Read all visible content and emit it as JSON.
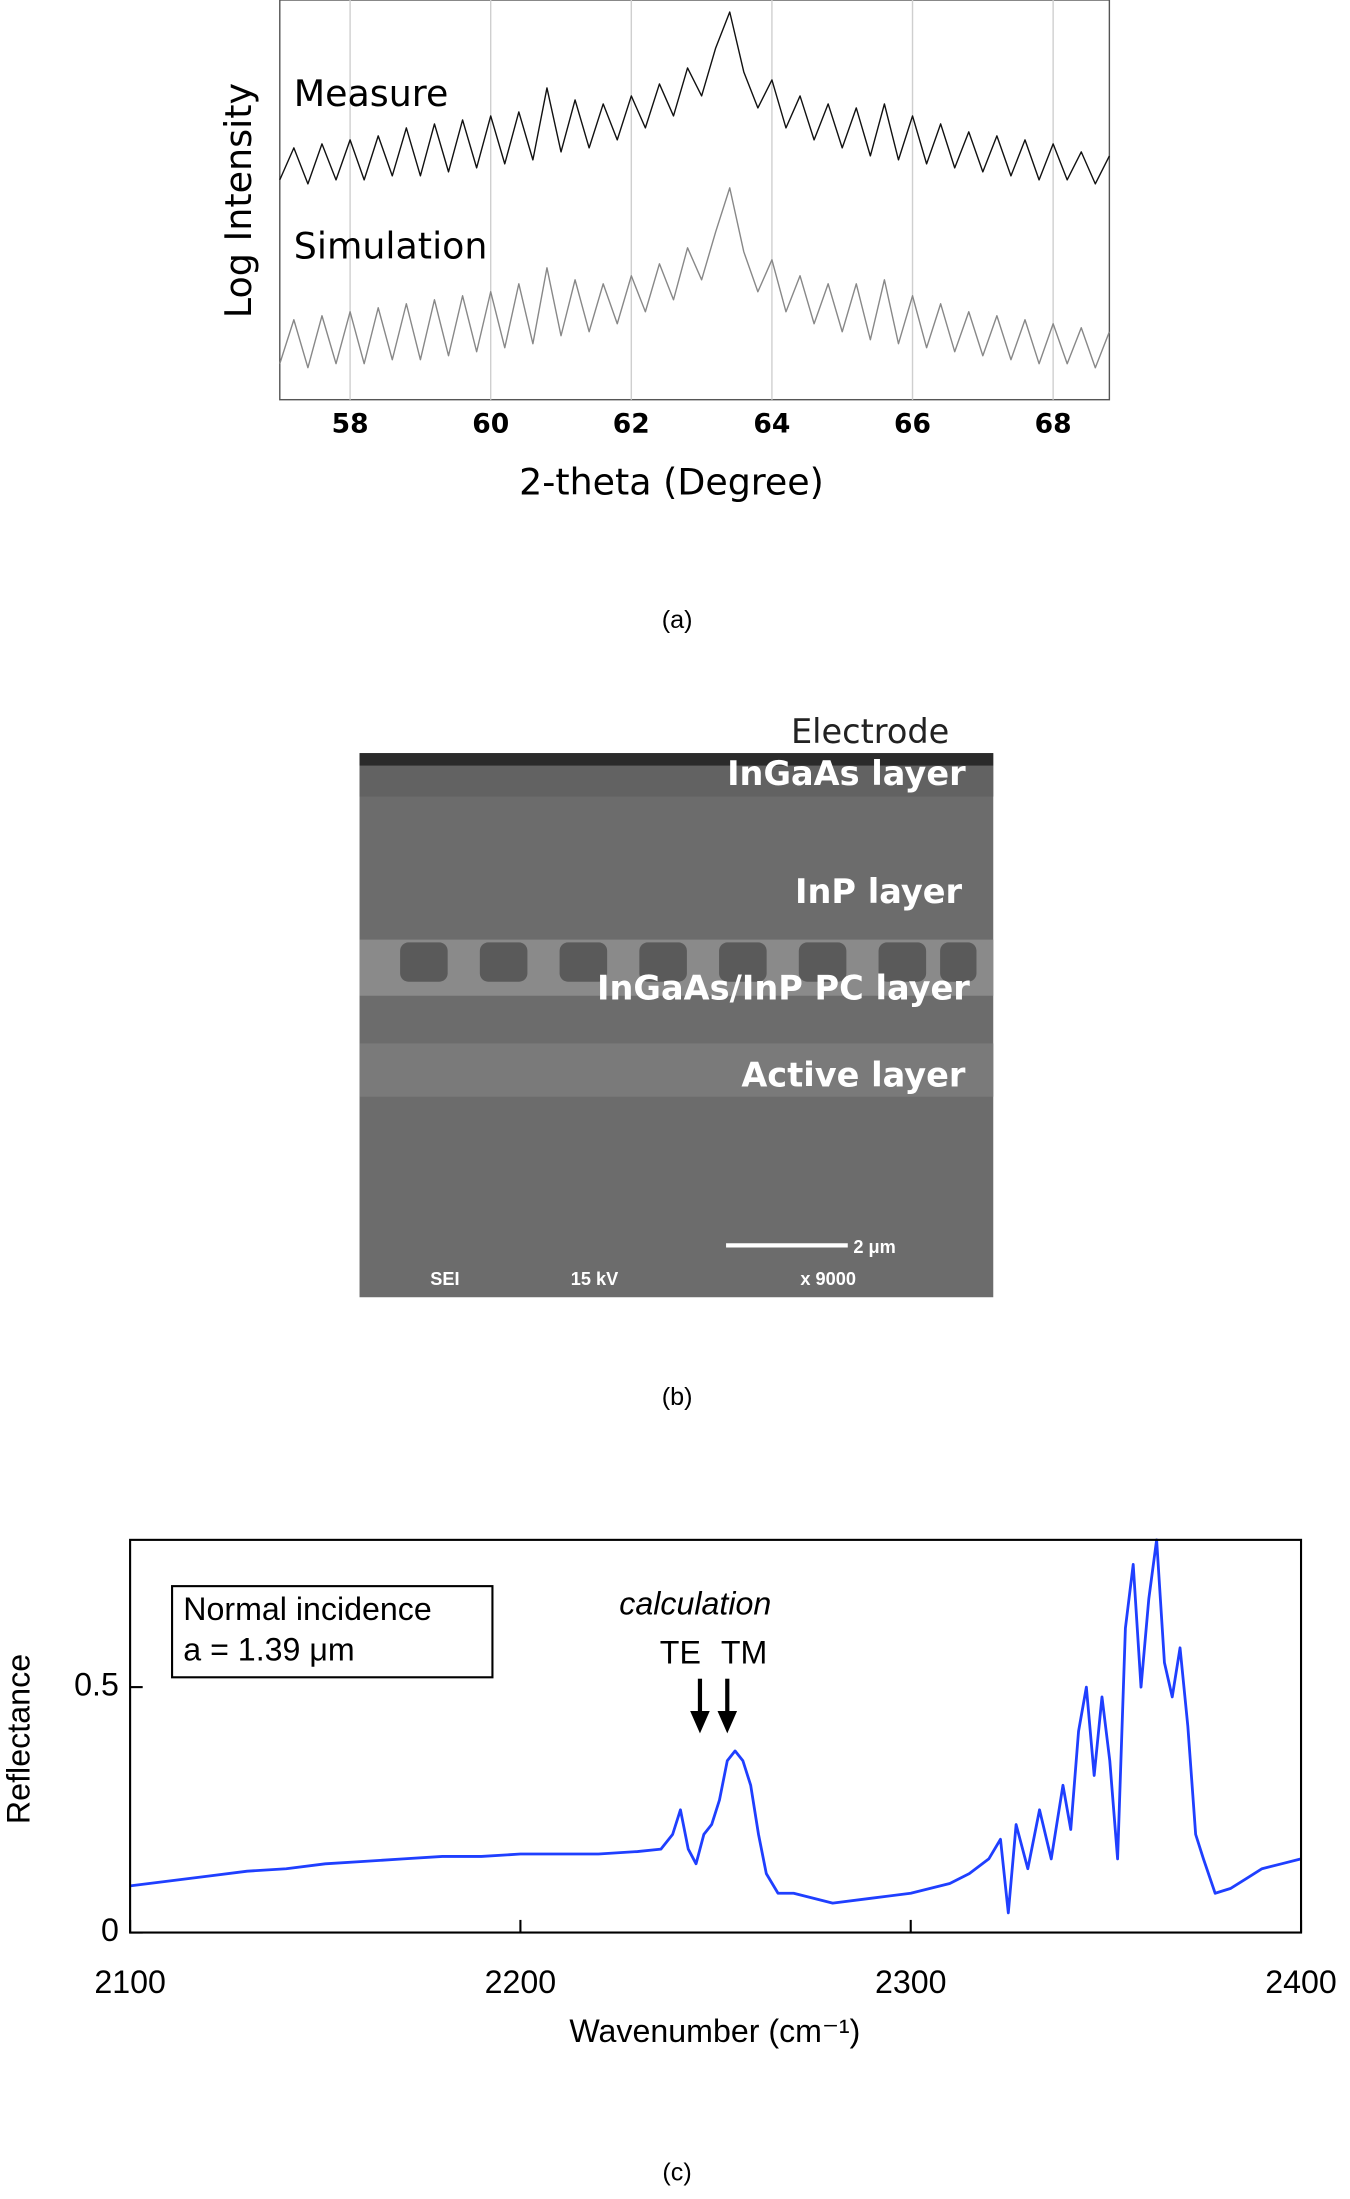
{
  "chart_data": [
    {
      "type": "line",
      "x_label": "2-theta (Degree)",
      "y_label": "Log Intensity",
      "x": [
        57,
        57.2,
        57.4,
        57.6,
        57.8,
        58,
        58.2,
        58.4,
        58.6,
        58.8,
        59,
        59.2,
        59.4,
        59.6,
        59.8,
        60,
        60.2,
        60.4,
        60.6,
        60.8,
        61,
        61.2,
        61.4,
        61.6,
        61.8,
        62,
        62.2,
        62.4,
        62.6,
        62.8,
        63,
        63.2,
        63.4,
        63.6,
        63.8,
        64,
        64.2,
        64.4,
        64.6,
        64.8,
        65,
        65.2,
        65.4,
        65.6,
        65.8,
        66,
        66.2,
        66.4,
        66.6,
        66.8,
        67,
        67.2,
        67.4,
        67.6,
        67.8,
        68,
        68.2,
        68.4,
        68.6,
        68.8
      ],
      "series": [
        {
          "name": "Measure",
          "color": "#111111",
          "values": [
            5.5,
            6.3,
            5.4,
            6.4,
            5.5,
            6.5,
            5.5,
            6.6,
            5.6,
            6.8,
            5.6,
            6.9,
            5.7,
            7.0,
            5.8,
            7.1,
            5.9,
            7.2,
            6.0,
            7.8,
            6.2,
            7.5,
            6.3,
            7.4,
            6.5,
            7.6,
            6.8,
            7.9,
            7.1,
            8.3,
            7.6,
            8.8,
            9.7,
            8.2,
            7.3,
            8.0,
            6.8,
            7.6,
            6.5,
            7.4,
            6.3,
            7.3,
            6.1,
            7.4,
            6.0,
            7.1,
            5.9,
            6.9,
            5.8,
            6.7,
            5.7,
            6.6,
            5.6,
            6.5,
            5.5,
            6.4,
            5.5,
            6.2,
            5.4,
            6.1
          ]
        },
        {
          "name": "Simulation",
          "color": "#888888",
          "values": [
            0.9,
            2.0,
            0.8,
            2.1,
            0.9,
            2.2,
            0.9,
            2.3,
            1.0,
            2.4,
            1.0,
            2.5,
            1.1,
            2.6,
            1.2,
            2.7,
            1.3,
            2.9,
            1.4,
            3.3,
            1.6,
            3.0,
            1.7,
            2.9,
            1.9,
            3.1,
            2.2,
            3.4,
            2.5,
            3.8,
            3.0,
            4.2,
            5.3,
            3.7,
            2.7,
            3.5,
            2.2,
            3.1,
            1.9,
            2.9,
            1.7,
            2.9,
            1.5,
            3.0,
            1.4,
            2.6,
            1.3,
            2.4,
            1.2,
            2.2,
            1.1,
            2.1,
            1.0,
            2.0,
            0.9,
            1.9,
            0.9,
            1.8,
            0.8,
            1.7
          ]
        }
      ],
      "xlim": [
        57,
        68.8
      ],
      "xticks": [
        58,
        60,
        62,
        64,
        66,
        68
      ],
      "ylim": [
        0,
        10
      ],
      "grid": true
    },
    {
      "type": "line",
      "x_label": "Wavenumber (cm⁻¹)",
      "y_label": "Reflectance",
      "legend_text": [
        "Normal incidence",
        "a = 1.39 μm"
      ],
      "annotation": "calculation",
      "arrows": [
        {
          "label": "TE",
          "x": 2246
        },
        {
          "label": "TM",
          "x": 2253
        }
      ],
      "x": [
        2100,
        2110,
        2120,
        2130,
        2140,
        2150,
        2160,
        2170,
        2180,
        2190,
        2200,
        2210,
        2220,
        2230,
        2236,
        2239,
        2241,
        2243,
        2245,
        2247,
        2249,
        2251,
        2253,
        2255,
        2257,
        2259,
        2261,
        2263,
        2266,
        2270,
        2280,
        2290,
        2300,
        2310,
        2315,
        2320,
        2323,
        2325,
        2327,
        2330,
        2333,
        2336,
        2339,
        2341,
        2343,
        2345,
        2347,
        2349,
        2351,
        2353,
        2355,
        2357,
        2359,
        2361,
        2363,
        2365,
        2367,
        2369,
        2371,
        2373,
        2375,
        2378,
        2382,
        2386,
        2390,
        2395,
        2400
      ],
      "values": [
        0.095,
        0.105,
        0.115,
        0.125,
        0.13,
        0.14,
        0.145,
        0.15,
        0.155,
        0.155,
        0.16,
        0.16,
        0.16,
        0.165,
        0.17,
        0.2,
        0.25,
        0.17,
        0.14,
        0.2,
        0.22,
        0.27,
        0.35,
        0.37,
        0.35,
        0.3,
        0.2,
        0.12,
        0.08,
        0.08,
        0.06,
        0.07,
        0.08,
        0.1,
        0.12,
        0.15,
        0.19,
        0.04,
        0.22,
        0.13,
        0.25,
        0.15,
        0.3,
        0.21,
        0.41,
        0.5,
        0.32,
        0.48,
        0.35,
        0.15,
        0.62,
        0.75,
        0.5,
        0.68,
        0.8,
        0.55,
        0.48,
        0.58,
        0.42,
        0.2,
        0.15,
        0.08,
        0.09,
        0.11,
        0.13,
        0.14,
        0.15
      ],
      "color": "#1f3fff",
      "xlim": [
        2100,
        2400
      ],
      "xticks": [
        2100,
        2200,
        2300,
        2400
      ],
      "ylim": [
        0,
        0.8
      ],
      "yticks": [
        0,
        0.5
      ]
    }
  ],
  "sem_image": {
    "labels": [
      "Electrode",
      "InGaAs layer",
      "InP layer",
      "InGaAs/InP PC layer",
      "Active layer"
    ],
    "scale_bar": "2 μm",
    "info": [
      "SEI",
      "15 kV",
      "x 9000"
    ]
  },
  "captions": [
    "(a)",
    "(b)",
    "(c)"
  ]
}
